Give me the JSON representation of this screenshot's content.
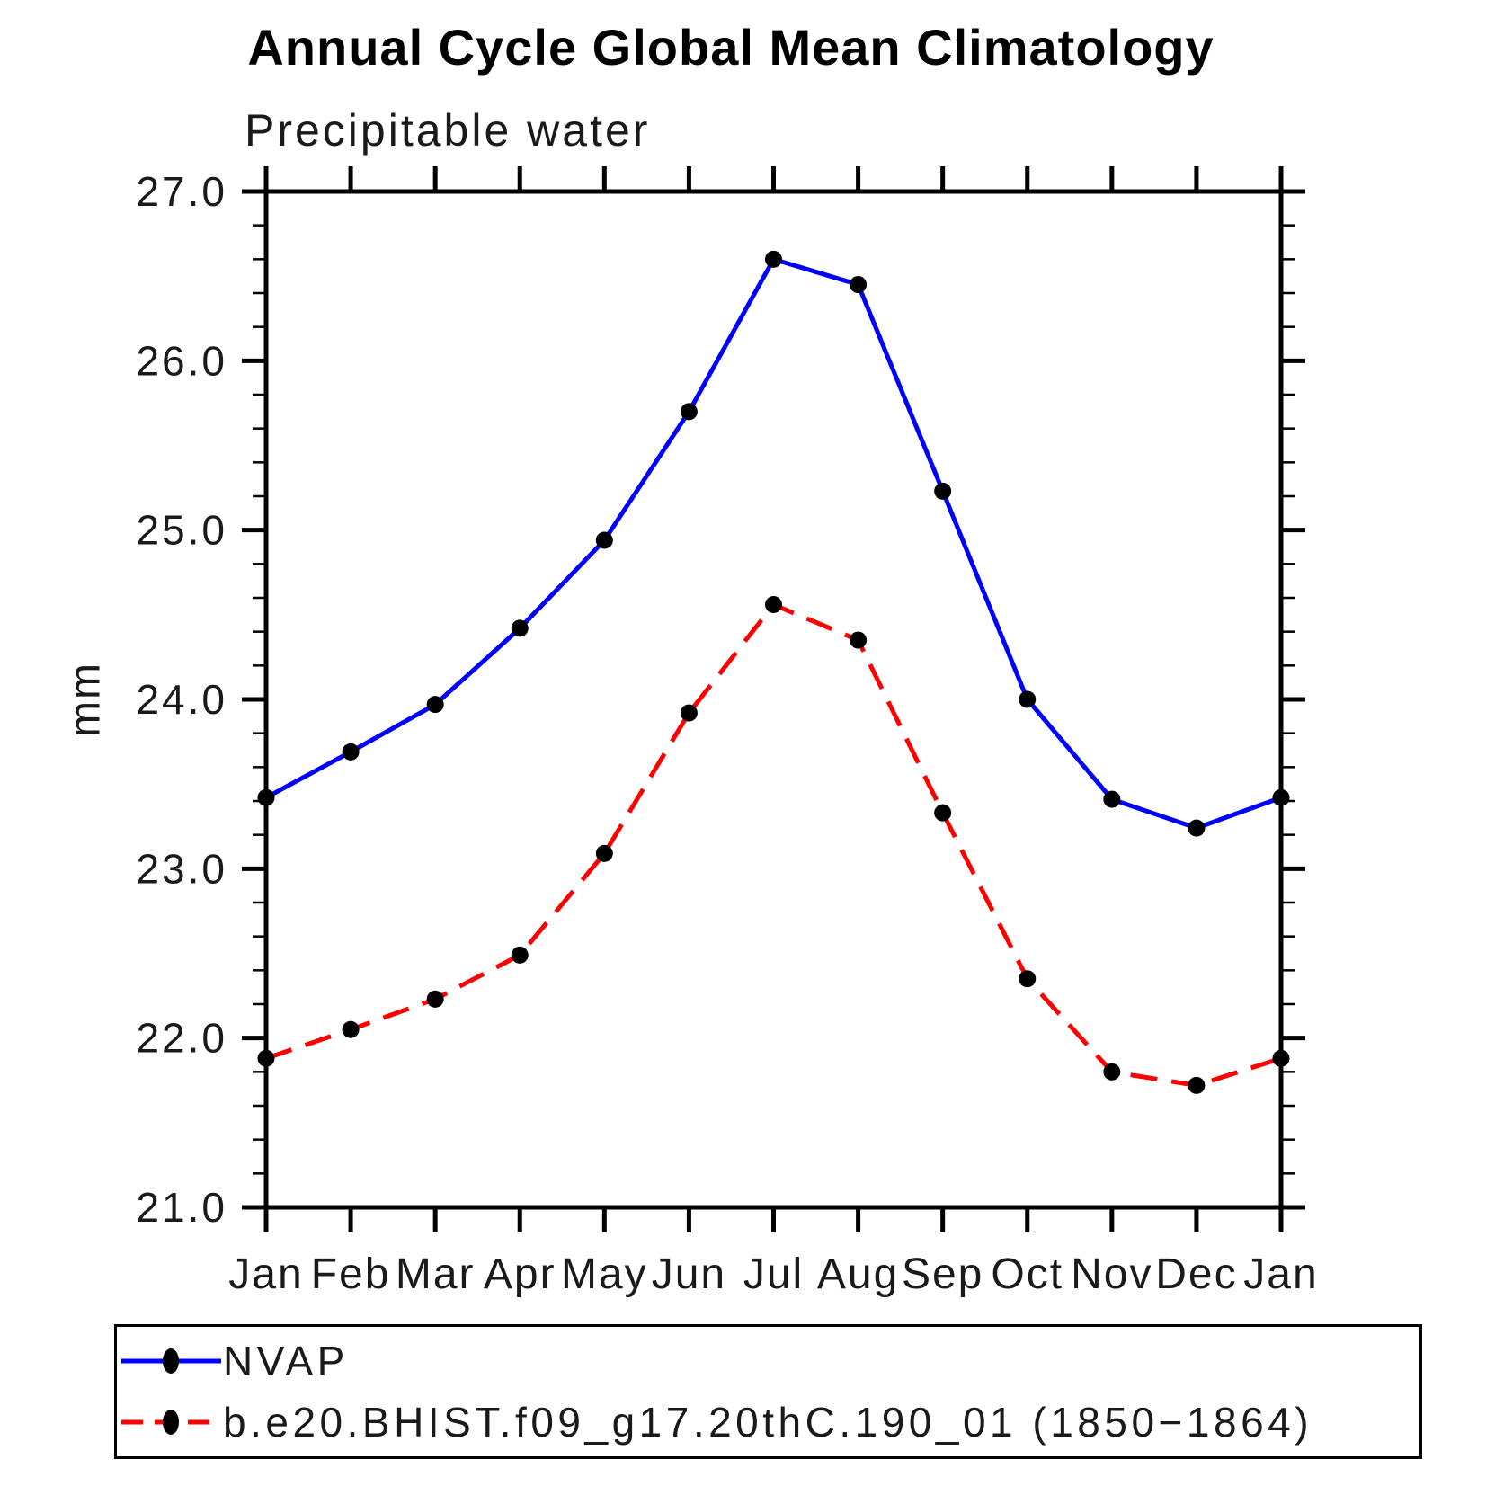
{
  "chart_data": {
    "type": "line",
    "title": "Annual Cycle Global Mean Climatology",
    "subtitle": "Precipitable water",
    "ylabel": "mm",
    "xlabel": "",
    "categories": [
      "Jan",
      "Feb",
      "Mar",
      "Apr",
      "May",
      "Jun",
      "Jul",
      "Aug",
      "Sep",
      "Oct",
      "Nov",
      "Dec",
      "Jan"
    ],
    "ylim": [
      21.0,
      27.0
    ],
    "y_major_tick_step": 1.0,
    "y_minor_tick_step": 0.2,
    "y_tick_labels": [
      "21.0",
      "22.0",
      "23.0",
      "24.0",
      "25.0",
      "26.0",
      "27.0"
    ],
    "grid": false,
    "axis_color": "#000000",
    "marker_color": "#000000",
    "legend_position": "bottom-left-box",
    "series": [
      {
        "name": "NVAP",
        "color": "#0000ff",
        "line_style": "solid",
        "marker": "filled-circle",
        "values": [
          23.42,
          23.69,
          23.97,
          24.42,
          24.94,
          25.7,
          26.6,
          26.45,
          25.23,
          24.0,
          23.41,
          23.24,
          23.42
        ]
      },
      {
        "name": "b.e20.BHIST.f09_g17.20thC.190_01 (1850−1864)",
        "color": "#ff0000",
        "line_style": "dashed",
        "marker": "filled-circle",
        "values": [
          21.88,
          22.05,
          22.23,
          22.49,
          23.09,
          23.92,
          24.56,
          24.35,
          23.33,
          22.35,
          21.8,
          21.72,
          21.88
        ]
      }
    ]
  }
}
